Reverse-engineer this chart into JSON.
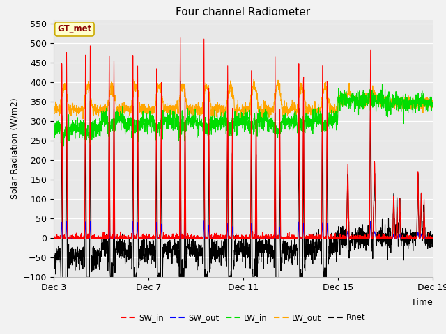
{
  "title": "Four channel Radiometer",
  "ylabel": "Solar Radiation (W/m2)",
  "xlabel": "Time",
  "ylim": [
    -100,
    560
  ],
  "xtick_labels": [
    "Dec 3",
    "Dec 7",
    "Dec 11",
    "Dec 15",
    "Dec 19"
  ],
  "xtick_days": [
    0,
    4,
    8,
    12,
    16
  ],
  "total_days": 16,
  "legend_labels": [
    "SW_in",
    "SW_out",
    "LW_in",
    "LW_out",
    "Rnet"
  ],
  "colors": {
    "SW_in": "#FF0000",
    "SW_out": "#0000FF",
    "LW_in": "#00DD00",
    "LW_out": "#FFA500",
    "Rnet": "#000000"
  },
  "annotation_text": "GT_met",
  "annotation_bg": "#FFFFCC",
  "annotation_border": "#CCAA00",
  "fig_bg": "#F2F2F2",
  "plot_bg": "#E8E8E8",
  "grid_color": "#FFFFFF",
  "title_fontsize": 11,
  "label_fontsize": 9,
  "tick_fontsize": 9,
  "line_width": 0.8,
  "ytick_min": -100,
  "ytick_max": 550,
  "ytick_step": 50,
  "day_peaks_sw": [
    490,
    500,
    495,
    490,
    445,
    525,
    520,
    450,
    450,
    475,
    475,
    475,
    200,
    505,
    110,
    175,
    155
  ],
  "day_peaks_sw2": [
    490,
    500,
    450,
    450,
    410,
    400,
    400,
    350,
    350,
    345,
    445,
    440,
    0,
    200,
    80,
    100,
    45
  ]
}
